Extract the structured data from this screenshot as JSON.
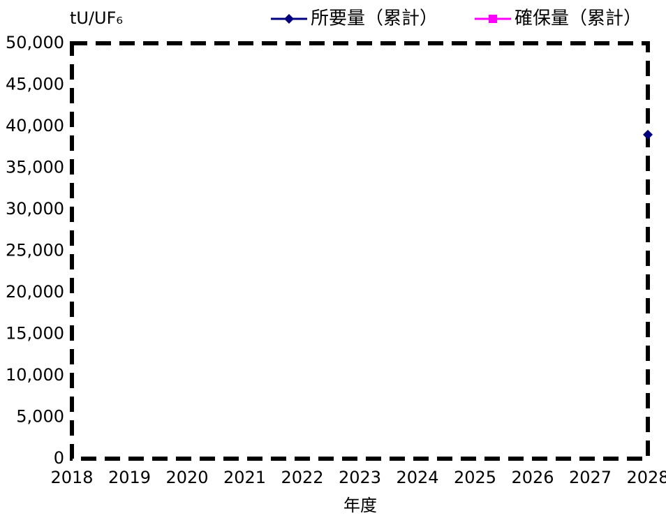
{
  "chart_data": {
    "type": "line",
    "y_label": "tU/UF₆",
    "x_label": "年度",
    "x": [
      2018,
      2019,
      2020,
      2021,
      2022,
      2023,
      2024,
      2025,
      2026,
      2027,
      2028
    ],
    "series": [
      {
        "name": "所要量（累計）",
        "color": "#000080",
        "marker": "diamond",
        "values": [
          null,
          null,
          null,
          null,
          null,
          null,
          null,
          null,
          null,
          null,
          39000
        ]
      },
      {
        "name": "確保量（累計）",
        "color": "#ff00ff",
        "marker": "square",
        "values": [
          null,
          null,
          null,
          null,
          null,
          null,
          null,
          null,
          null,
          null,
          null
        ]
      }
    ],
    "xlim": [
      2018,
      2028
    ],
    "xticks": [
      2018,
      2019,
      2020,
      2021,
      2022,
      2023,
      2024,
      2025,
      2026,
      2027,
      2028
    ],
    "ylim": [
      0,
      50000
    ],
    "yticks": [
      {
        "value": 0,
        "label": "0"
      },
      {
        "value": 5000,
        "label": "5,000"
      },
      {
        "value": 10000,
        "label": "10,000"
      },
      {
        "value": 15000,
        "label": "15,000"
      },
      {
        "value": 20000,
        "label": "20,000"
      },
      {
        "value": 25000,
        "label": "25,000"
      },
      {
        "value": 30000,
        "label": "30,000"
      },
      {
        "value": 35000,
        "label": "35,000"
      },
      {
        "value": 40000,
        "label": "40,000"
      },
      {
        "value": 45000,
        "label": "45,000"
      },
      {
        "value": 50000,
        "label": "50,000"
      }
    ],
    "legend": "top-right"
  }
}
